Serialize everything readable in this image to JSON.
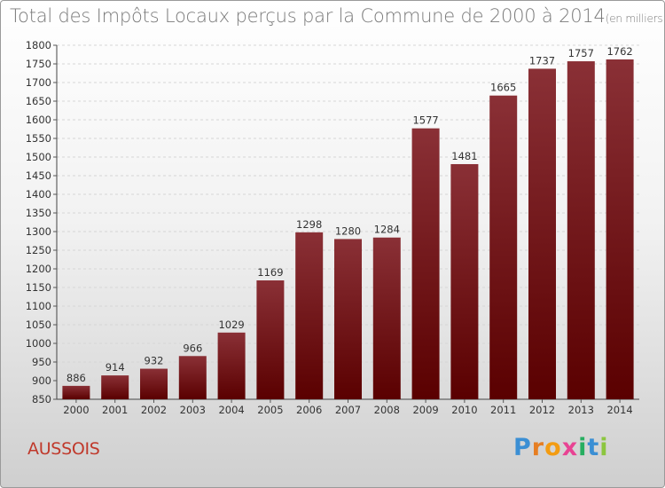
{
  "title": {
    "main": "Total des Impôts Locaux perçus par la Commune de 2000 à 2014",
    "unit": "(en milliers d'€)"
  },
  "commune": "AUSSOIS",
  "logo": {
    "text": "Proxiti",
    "letters": [
      {
        "ch": "P",
        "color": "#3b8fd4"
      },
      {
        "ch": "r",
        "color": "#e67e22"
      },
      {
        "ch": "o",
        "color": "#f39c12"
      },
      {
        "ch": "x",
        "color": "#e84393"
      },
      {
        "ch": "i",
        "color": "#27ae60"
      },
      {
        "ch": "t",
        "color": "#3b8fd4"
      },
      {
        "ch": "i",
        "color": "#8cc63f"
      }
    ]
  },
  "colors": {
    "bar_top": "#8a3036",
    "bar_bottom": "#5a0000",
    "title": "#7a7a7a",
    "commune": "#c0392b"
  },
  "chart_data": {
    "type": "bar",
    "categories": [
      "2000",
      "2001",
      "2002",
      "2003",
      "2004",
      "2005",
      "2006",
      "2007",
      "2008",
      "2009",
      "2010",
      "2011",
      "2012",
      "2013",
      "2014"
    ],
    "values": [
      886,
      914,
      932,
      966,
      1029,
      1169,
      1298,
      1280,
      1284,
      1577,
      1481,
      1665,
      1737,
      1757,
      1762
    ],
    "ylim": [
      850,
      1800
    ],
    "yticks": [
      850,
      900,
      950,
      1000,
      1050,
      1100,
      1150,
      1200,
      1250,
      1300,
      1350,
      1400,
      1450,
      1500,
      1550,
      1600,
      1650,
      1700,
      1750,
      1800
    ],
    "grid": true,
    "legend": "none",
    "title": "Total des Impôts Locaux perçus par la Commune de 2000 à 2014",
    "xlabel": "",
    "ylabel": ""
  }
}
